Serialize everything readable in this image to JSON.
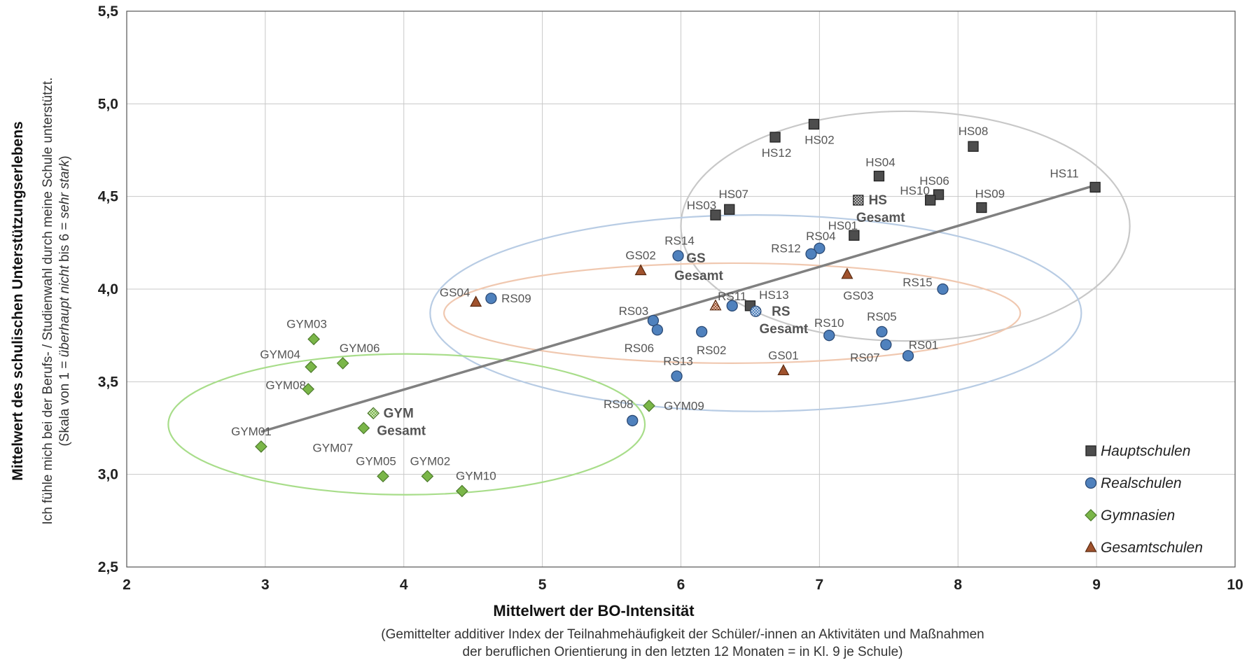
{
  "chart_data": {
    "type": "scatter",
    "xlim": [
      2,
      10
    ],
    "ylim": [
      2.5,
      5.5
    ],
    "xticks": [
      "2",
      "3",
      "4",
      "5",
      "6",
      "7",
      "8",
      "9",
      "10"
    ],
    "yticks": [
      "2,5",
      "3,0",
      "3,5",
      "4,0",
      "4,5",
      "5,0",
      "5,5"
    ],
    "grid": true,
    "xlabel": "Mittelwert der BO-Intensität",
    "xlabel_sub1": "(Gemittelter additiver Index der Teilnahmehäufigkeit der Schüler/-innen an Aktivitäten und Maßnahmen",
    "xlabel_sub2": "der beruflichen Orientierung in den letzten 12 Monaten = in Kl. 9 je Schule)",
    "ylabel": "Mittelwert des schulischen Unterstützungserlebens",
    "ylabel_sub1": "Ich fühle mich bei der Berufs- / Studienwahl durch meine Schule unterstützt.",
    "ylabel_sub2_a": "(Skala von 1 = ",
    "ylabel_sub2_b": "überhaupt nicht",
    "ylabel_sub2_c": " bis 6 = ",
    "ylabel_sub2_d": "sehr stark",
    "ylabel_sub2_e": ")",
    "legend_position": "bottom-right",
    "colors": {
      "Hauptschulen": "#4d4d4d",
      "Realschulen": "#4f81bd",
      "Gymnasien": "#7ab648",
      "Gesamtschulen": "#a0522d",
      "trendline": "#808080",
      "ellipse_hs": "#c8c8c8",
      "ellipse_rs": "#b8cce4",
      "ellipse_gs": "#f0c8b0",
      "ellipse_gym": "#a8dd8a"
    },
    "series": [
      {
        "name": "Hauptschulen",
        "marker": "square",
        "points": [
          {
            "label": "HS12",
            "x": 6.68,
            "y": 4.82
          },
          {
            "label": "HS02",
            "x": 6.96,
            "y": 4.89
          },
          {
            "label": "HS08",
            "x": 8.11,
            "y": 4.77
          },
          {
            "label": "HS04",
            "x": 7.43,
            "y": 4.61
          },
          {
            "label": "HS11",
            "x": 8.99,
            "y": 4.55
          },
          {
            "label": "HS06",
            "x": 7.86,
            "y": 4.51
          },
          {
            "label": "HS10",
            "x": 7.8,
            "y": 4.48
          },
          {
            "label": "HS09",
            "x": 8.17,
            "y": 4.44
          },
          {
            "label": "HS07",
            "x": 6.35,
            "y": 4.43
          },
          {
            "label": "HS03",
            "x": 6.25,
            "y": 4.4
          },
          {
            "label": "HS01",
            "x": 7.25,
            "y": 4.29
          },
          {
            "label": "HS13",
            "x": 6.5,
            "y": 3.91
          }
        ]
      },
      {
        "name": "Realschulen",
        "marker": "circle",
        "points": [
          {
            "label": "RS04",
            "x": 7.0,
            "y": 4.22
          },
          {
            "label": "RS12",
            "x": 6.94,
            "y": 4.19
          },
          {
            "label": "RS14",
            "x": 5.98,
            "y": 4.18
          },
          {
            "label": "RS15",
            "x": 7.89,
            "y": 4.0
          },
          {
            "label": "RS09",
            "x": 4.63,
            "y": 3.95
          },
          {
            "label": "RS11",
            "x": 6.37,
            "y": 3.91
          },
          {
            "label": "RS03",
            "x": 5.8,
            "y": 3.83
          },
          {
            "label": "RS06",
            "x": 5.83,
            "y": 3.78
          },
          {
            "label": "RS02",
            "x": 6.15,
            "y": 3.77
          },
          {
            "label": "RS05",
            "x": 7.45,
            "y": 3.77
          },
          {
            "label": "RS10",
            "x": 7.07,
            "y": 3.75
          },
          {
            "label": "RS07",
            "x": 7.48,
            "y": 3.7
          },
          {
            "label": "RS01",
            "x": 7.64,
            "y": 3.64
          },
          {
            "label": "RS13",
            "x": 5.97,
            "y": 3.53
          },
          {
            "label": "RS08",
            "x": 5.65,
            "y": 3.29
          }
        ]
      },
      {
        "name": "Gymnasien",
        "marker": "diamond",
        "points": [
          {
            "label": "GYM03",
            "x": 3.35,
            "y": 3.73
          },
          {
            "label": "GYM06",
            "x": 3.56,
            "y": 3.6
          },
          {
            "label": "GYM04",
            "x": 3.33,
            "y": 3.58
          },
          {
            "label": "GYM08",
            "x": 3.31,
            "y": 3.46
          },
          {
            "label": "GYM09",
            "x": 5.77,
            "y": 3.37
          },
          {
            "label": "GYM07",
            "x": 3.71,
            "y": 3.25
          },
          {
            "label": "GYM01",
            "x": 2.97,
            "y": 3.15
          },
          {
            "label": "GYM05",
            "x": 3.85,
            "y": 2.99
          },
          {
            "label": "GYM02",
            "x": 4.17,
            "y": 2.99
          },
          {
            "label": "GYM10",
            "x": 4.42,
            "y": 2.91
          }
        ]
      },
      {
        "name": "Gesamtschulen",
        "marker": "triangle",
        "points": [
          {
            "label": "GS02",
            "x": 5.71,
            "y": 4.1
          },
          {
            "label": "GS04",
            "x": 4.52,
            "y": 3.93
          },
          {
            "label": "GS03",
            "x": 7.2,
            "y": 4.08
          },
          {
            "label": "GS01",
            "x": 6.74,
            "y": 3.56
          }
        ]
      }
    ],
    "totals": [
      {
        "line1": "HS",
        "line2": "Gesamt",
        "group": "Hauptschulen",
        "x": 7.28,
        "y": 4.48
      },
      {
        "line1": "RS",
        "line2": "Gesamt",
        "group": "Realschulen",
        "x": 6.54,
        "y": 3.88
      },
      {
        "line1": "GS",
        "line2": "Gesamt",
        "group": "Gesamtschulen",
        "x": 6.25,
        "y": 3.91
      },
      {
        "line1": "GYM",
        "line2": "Gesamt",
        "group": "Gymnasien",
        "x": 3.78,
        "y": 3.33
      }
    ],
    "trendline": {
      "x1": 2.97,
      "y1": 3.23,
      "x2": 8.99,
      "y2": 4.56
    },
    "ellipses": [
      {
        "group": "Hauptschulen",
        "cx": 7.62,
        "cy": 4.34,
        "rx": 1.62,
        "ry": 0.62
      },
      {
        "group": "Realschulen",
        "cx": 6.54,
        "cy": 3.87,
        "rx": 2.35,
        "ry": 0.53
      },
      {
        "group": "Gesamtschulen",
        "cx": 6.37,
        "cy": 3.87,
        "rx": 2.08,
        "ry": 0.27
      },
      {
        "group": "Gymnasien",
        "cx": 4.02,
        "cy": 3.27,
        "rx": 1.72,
        "ry": 0.38
      }
    ]
  }
}
